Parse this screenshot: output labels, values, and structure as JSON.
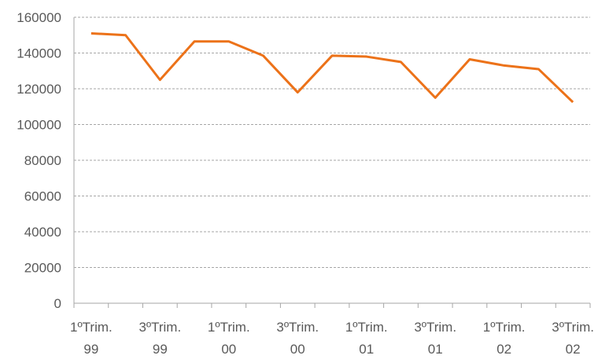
{
  "chart_data": {
    "type": "line",
    "categories": [
      "1ºTrim. 99",
      null,
      "3ºTrim. 99",
      null,
      "1ºTrim. 00",
      null,
      "3ºTrim. 00",
      null,
      "1ºTrim. 01",
      null,
      "3ºTrim. 01",
      null,
      "1ºTrim. 02",
      null,
      "3ºTrim. 02"
    ],
    "series": [
      {
        "color": "#ec7219",
        "values": [
          151000,
          150000,
          125000,
          146500,
          146500,
          138500,
          118000,
          138500,
          138000,
          135000,
          115000,
          136500,
          133000,
          131000,
          112500
        ]
      }
    ],
    "ylim": [
      0,
      160000
    ],
    "yticks": [
      0,
      20000,
      40000,
      60000,
      80000,
      100000,
      120000,
      140000,
      160000
    ],
    "grid": true
  }
}
